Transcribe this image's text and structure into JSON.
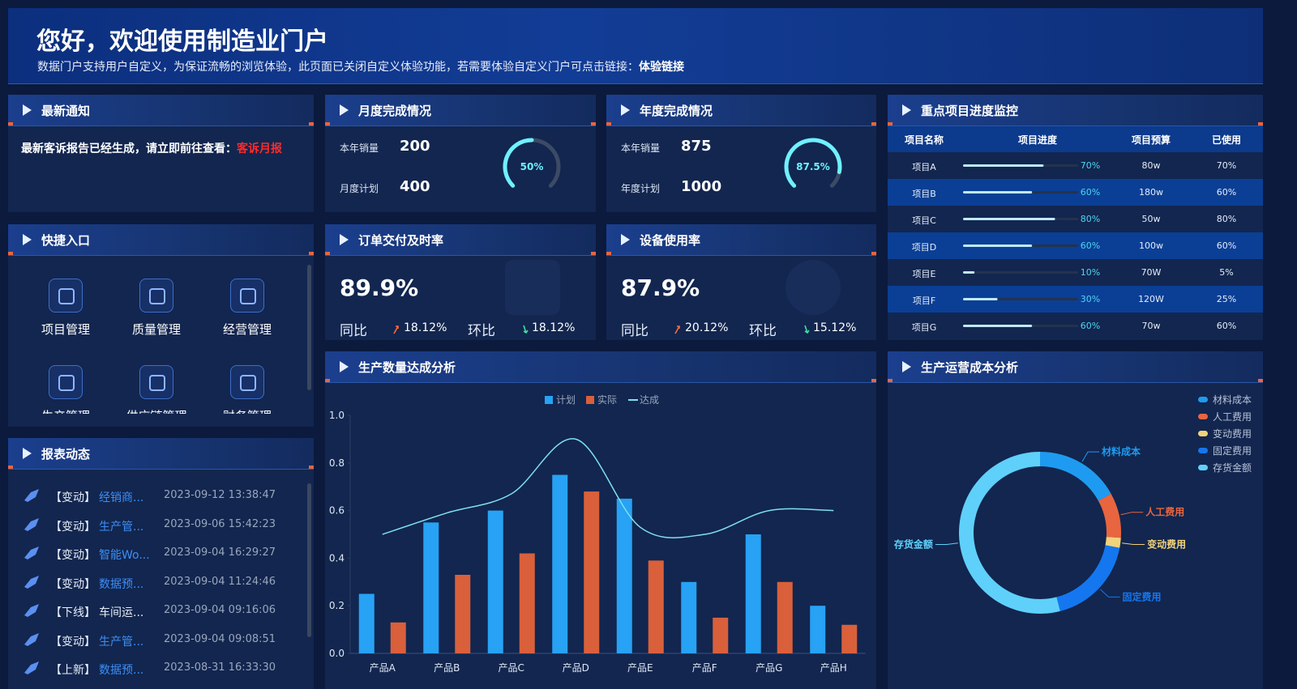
{
  "header": {
    "title": "您好，欢迎使用制造业门户",
    "subtitle": "数据门户支持用户自定义，为保证流畅的浏览体验，此页面已关闭自定义体验功能，若需要体验自定义门户可点击链接：",
    "link": "体验链接"
  },
  "notice": {
    "title": "最新通知",
    "text": "最新客诉报告已经生成，请立即前往查看：",
    "link": "客诉月报"
  },
  "monthly": {
    "title": "月度完成情况",
    "items": [
      {
        "label": "本年销量",
        "value": 200
      },
      {
        "label": "月度计划",
        "value": 400
      }
    ],
    "gauge": {
      "value": 50,
      "label": "50%"
    }
  },
  "yearly": {
    "title": "年度完成情况",
    "items": [
      {
        "label": "本年销量",
        "value": 875
      },
      {
        "label": "年度计划",
        "value": 1000
      }
    ],
    "gauge": {
      "value": 87.5,
      "label": "87.5%"
    }
  },
  "orders": {
    "title": "订单交付及时率",
    "value": "89.9%",
    "yoy_label": "同比",
    "yoy": "18.12%",
    "mom_label": "环比",
    "mom": "18.12%"
  },
  "equipment": {
    "title": "设备使用率",
    "value": "87.9%",
    "yoy_label": "同比",
    "yoy": "20.12%",
    "mom_label": "环比",
    "mom": "15.12%"
  },
  "quick": {
    "title": "快捷入口",
    "items": [
      "项目管理",
      "质量管理",
      "经营管理",
      "生产管理",
      "供应链管理",
      "财务管理"
    ]
  },
  "reports": {
    "title": "报表动态",
    "items": [
      {
        "tag": "【变动】",
        "name": "经销商...",
        "name_color": "#3d8ef5",
        "time": "2023-09-12 13:38:47"
      },
      {
        "tag": "【变动】",
        "name": "生产管...",
        "name_color": "#3d8ef5",
        "time": "2023-09-06 15:42:23"
      },
      {
        "tag": "【变动】",
        "name": "智能Wo...",
        "name_color": "#3d8ef5",
        "time": "2023-09-04 16:29:27"
      },
      {
        "tag": "【变动】",
        "name": "数据预...",
        "name_color": "#3d8ef5",
        "time": "2023-09-04 11:24:46"
      },
      {
        "tag": "【下线】",
        "name": "车间运...",
        "name_color": "#e6ecf5",
        "time": "2023-09-04 09:16:06"
      },
      {
        "tag": "【变动】",
        "name": "生产管...",
        "name_color": "#3d8ef5",
        "time": "2023-09-04 09:08:51"
      },
      {
        "tag": "【上新】",
        "name": "数据预...",
        "name_color": "#3d8ef5",
        "time": "2023-08-31 16:33:30"
      }
    ]
  },
  "projects": {
    "title": "重点项目进度监控",
    "columns": [
      "项目名称",
      "项目进度",
      "项目预算",
      "已使用"
    ],
    "rows": [
      {
        "name": "项目A",
        "progress": 70,
        "progress_label": "70%",
        "budget": "80w",
        "used": "70%"
      },
      {
        "name": "项目B",
        "progress": 60,
        "progress_label": "60%",
        "budget": "180w",
        "used": "60%"
      },
      {
        "name": "项目C",
        "progress": 80,
        "progress_label": "80%",
        "budget": "50w",
        "used": "80%"
      },
      {
        "name": "项目D",
        "progress": 60,
        "progress_label": "60%",
        "budget": "100w",
        "used": "60%"
      },
      {
        "name": "项目E",
        "progress": 10,
        "progress_label": "10%",
        "budget": "70W",
        "used": "5%"
      },
      {
        "name": "项目F",
        "progress": 30,
        "progress_label": "30%",
        "budget": "120W",
        "used": "25%"
      },
      {
        "name": "项目G",
        "progress": 60,
        "progress_label": "60%",
        "budget": "70w",
        "used": "60%"
      }
    ]
  },
  "chart_data": [
    {
      "type": "bar",
      "title": "生产数量达成分析",
      "categories": [
        "产品A",
        "产品B",
        "产品C",
        "产品D",
        "产品E",
        "产品F",
        "产品G",
        "产品H"
      ],
      "series": [
        {
          "name": "计划",
          "type": "bar",
          "color": "#27a2f4",
          "values": [
            0.25,
            0.55,
            0.6,
            0.75,
            0.65,
            0.3,
            0.5,
            0.2
          ]
        },
        {
          "name": "实际",
          "type": "bar",
          "color": "#d9603b",
          "values": [
            0.13,
            0.33,
            0.42,
            0.68,
            0.39,
            0.15,
            0.3,
            0.12
          ]
        },
        {
          "name": "达成",
          "type": "line",
          "color": "#7fe0ee",
          "values": [
            0.5,
            0.59,
            0.67,
            0.9,
            0.53,
            0.5,
            0.6,
            0.6
          ]
        }
      ],
      "ylim": [
        0,
        1
      ],
      "yticks": [
        {
          "value": 0,
          "label": "0.0"
        },
        0.2,
        0.4,
        0.6,
        0.8,
        {
          "value": 1,
          "label": "1.0"
        }
      ],
      "legend": "top"
    },
    {
      "type": "pie",
      "title": "生产运营成本分析",
      "categories": [
        "材料成本",
        "人工费用",
        "变动费用",
        "固定费用",
        "存货金额"
      ],
      "values": [
        17,
        9,
        2,
        18,
        54
      ],
      "colors": [
        "#1e9bf0",
        "#e8653f",
        "#f2d27a",
        "#1477f0",
        "#5fd0fa"
      ],
      "legend": "top-right"
    }
  ]
}
